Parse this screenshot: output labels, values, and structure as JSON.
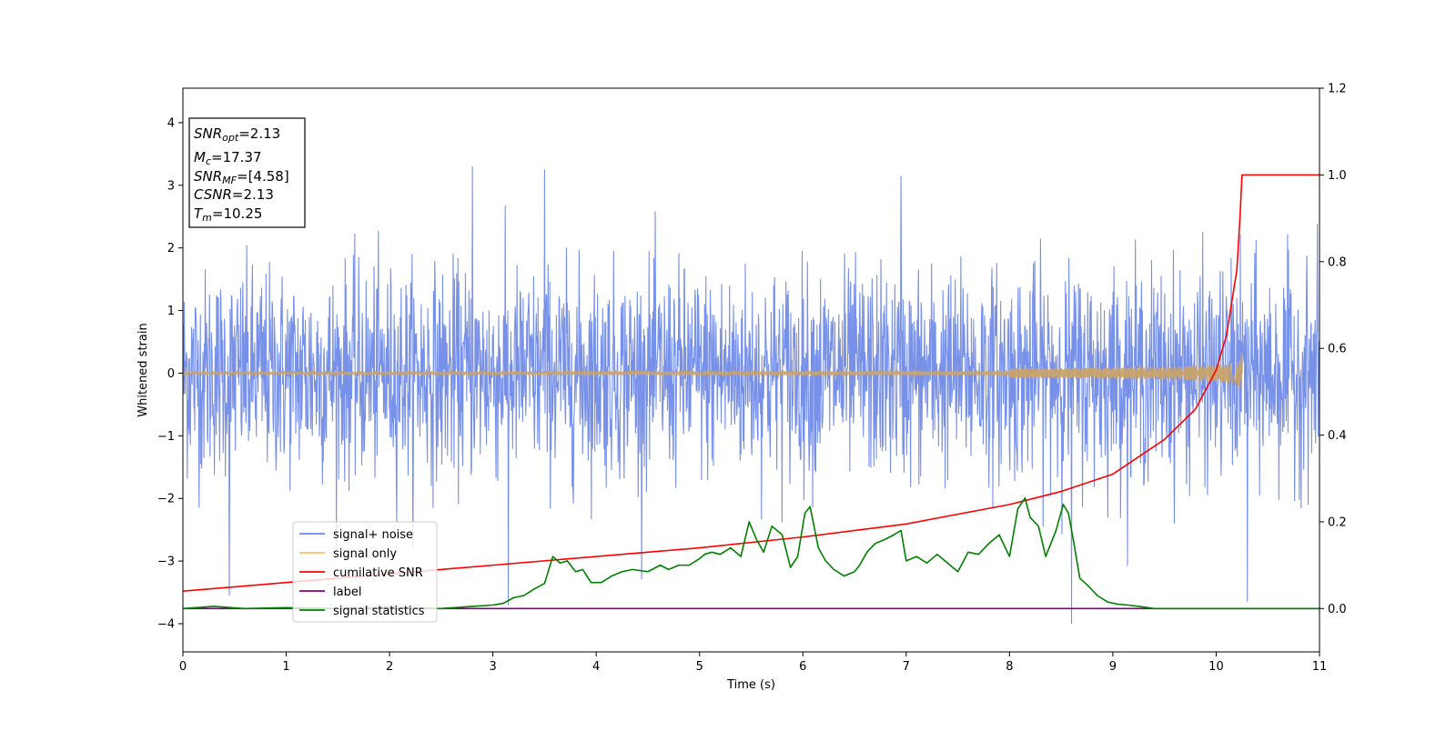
{
  "chart_data": {
    "type": "line",
    "title": "",
    "xlabel": "Time (s)",
    "ylabel": "Whitened strain",
    "y2label": "",
    "xlim": [
      0,
      11
    ],
    "ylim": [
      -4.45,
      4.55
    ],
    "y2lim": [
      -0.1,
      1.2
    ],
    "xticks": [
      0,
      1,
      2,
      3,
      4,
      5,
      6,
      7,
      8,
      9,
      10,
      11
    ],
    "yticks": [
      -4,
      -3,
      -2,
      -1,
      0,
      1,
      2,
      3,
      4
    ],
    "y2ticks": [
      0.0,
      0.2,
      0.4,
      0.6,
      0.8,
      1.0,
      1.2
    ],
    "legend_position": "lower-left",
    "grid": false,
    "colors": {
      "signal_noise": "#6b87e6",
      "signal_only": "#f5c15f",
      "cumulative_snr": "#ff0000",
      "label": "#800080",
      "signal_statistics": "#008000"
    },
    "legend": [
      {
        "name": "signal+ noise",
        "color": "#6b87e6"
      },
      {
        "name": "signal only",
        "color": "#f5c15f"
      },
      {
        "name": "cumilative SNR",
        "color": "#ff0000"
      },
      {
        "name": "label",
        "color": "#800080"
      },
      {
        "name": "signal statistics",
        "color": "#008000"
      }
    ],
    "annotation": {
      "lines": [
        {
          "base": "SNR",
          "sub": "opt",
          "value": "=2.13"
        },
        {
          "base": "M",
          "sub": "c",
          "value": "=17.37"
        },
        {
          "base": "SNR",
          "sub": "MF",
          "value": "=[4.58]"
        },
        {
          "base": "CSNR",
          "sub": "",
          "value": "=2.13"
        },
        {
          "base": "T",
          "sub": "m",
          "value": "=10.25"
        }
      ]
    },
    "signal_noise": {
      "axis": "left",
      "x_range": [
        0,
        11
      ],
      "typical_amplitude": 1.8,
      "max": 3.3,
      "min": -4.05,
      "peaks": [
        {
          "x": 2.8,
          "y": 3.3
        },
        {
          "x": 3.5,
          "y": 3.25
        },
        {
          "x": 6.95,
          "y": 3.15
        },
        {
          "x": 8.6,
          "y": -4.0
        },
        {
          "x": 10.3,
          "y": -3.65
        },
        {
          "x": 0.45,
          "y": -3.55
        },
        {
          "x": 3.15,
          "y": -3.7
        }
      ]
    },
    "signal_only": {
      "axis": "left",
      "x_range": [
        0,
        10.25
      ],
      "chirp_end": 10.25,
      "peak_amplitude": 0.38
    },
    "cumulative_snr": {
      "axis": "right",
      "x": [
        0,
        1,
        2,
        3,
        4,
        5,
        6,
        7,
        8,
        8.5,
        9,
        9.5,
        9.8,
        10.0,
        10.1,
        10.2,
        10.23,
        10.25,
        11
      ],
      "y": [
        0.04,
        0.06,
        0.08,
        0.1,
        0.12,
        0.14,
        0.165,
        0.195,
        0.24,
        0.27,
        0.31,
        0.39,
        0.46,
        0.55,
        0.63,
        0.78,
        0.9,
        1.0,
        1.0
      ]
    },
    "label": {
      "axis": "right",
      "x": [
        0,
        11
      ],
      "y": [
        0.0,
        0.0
      ]
    },
    "signal_statistics": {
      "axis": "right",
      "x": [
        0,
        0.3,
        0.6,
        1.0,
        1.5,
        2.0,
        2.5,
        2.8,
        3.0,
        3.1,
        3.2,
        3.3,
        3.4,
        3.5,
        3.58,
        3.65,
        3.72,
        3.8,
        3.87,
        3.95,
        4.05,
        4.15,
        4.25,
        4.35,
        4.5,
        4.62,
        4.7,
        4.8,
        4.9,
        5.0,
        5.05,
        5.12,
        5.2,
        5.3,
        5.4,
        5.48,
        5.55,
        5.62,
        5.7,
        5.8,
        5.88,
        5.95,
        6.02,
        6.07,
        6.15,
        6.22,
        6.3,
        6.4,
        6.5,
        6.55,
        6.62,
        6.7,
        6.8,
        6.88,
        6.95,
        7.0,
        7.1,
        7.2,
        7.3,
        7.4,
        7.5,
        7.6,
        7.7,
        7.8,
        7.9,
        8.0,
        8.08,
        8.15,
        8.2,
        8.28,
        8.35,
        8.45,
        8.52,
        8.57,
        8.62,
        8.68,
        8.75,
        8.85,
        8.95,
        9.05,
        9.15,
        9.25,
        9.4,
        9.6,
        10.0,
        11.0
      ],
      "y": [
        0.0,
        0.005,
        0.0,
        0.002,
        0.0,
        0.003,
        0.0,
        0.005,
        0.008,
        0.012,
        0.025,
        0.03,
        0.045,
        0.058,
        0.12,
        0.105,
        0.11,
        0.085,
        0.09,
        0.06,
        0.06,
        0.075,
        0.085,
        0.09,
        0.085,
        0.1,
        0.09,
        0.1,
        0.1,
        0.115,
        0.125,
        0.13,
        0.125,
        0.14,
        0.12,
        0.2,
        0.16,
        0.13,
        0.19,
        0.17,
        0.095,
        0.12,
        0.22,
        0.235,
        0.14,
        0.11,
        0.09,
        0.075,
        0.085,
        0.1,
        0.13,
        0.15,
        0.16,
        0.17,
        0.18,
        0.11,
        0.12,
        0.105,
        0.125,
        0.105,
        0.085,
        0.13,
        0.125,
        0.15,
        0.17,
        0.12,
        0.23,
        0.255,
        0.21,
        0.19,
        0.12,
        0.18,
        0.24,
        0.22,
        0.155,
        0.07,
        0.055,
        0.03,
        0.015,
        0.01,
        0.008,
        0.005,
        0.0,
        0.0,
        0.0,
        0.0
      ]
    }
  }
}
